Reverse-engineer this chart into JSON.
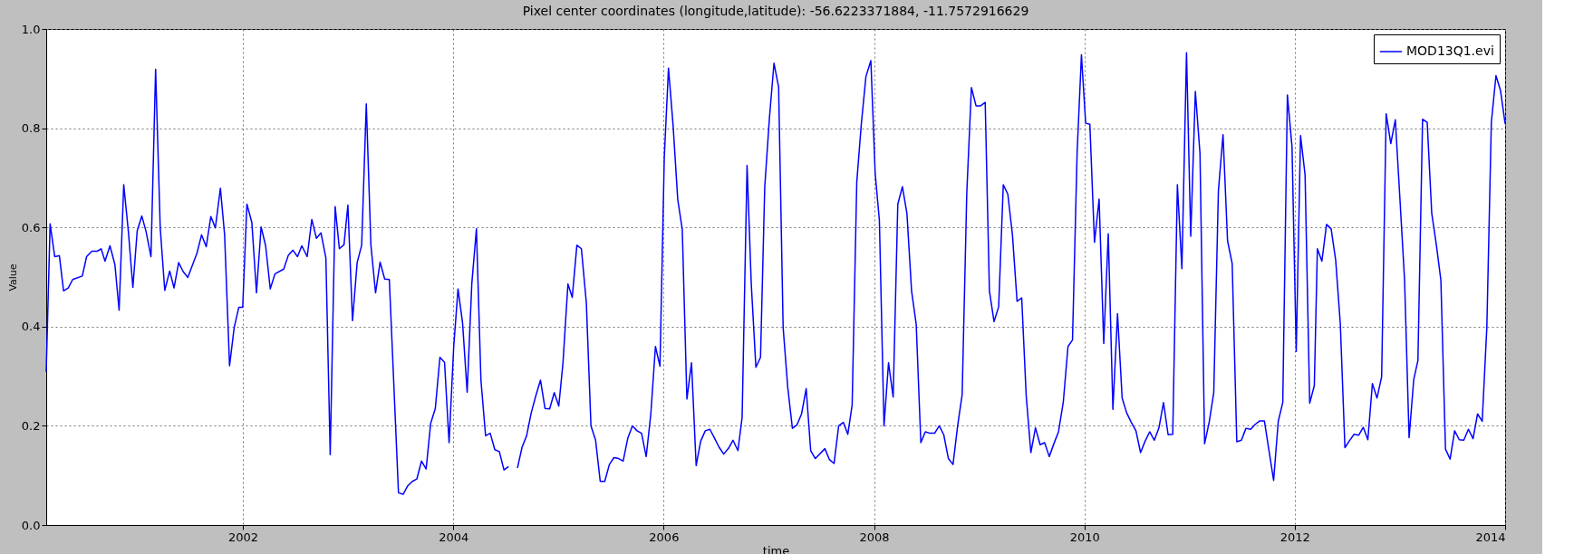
{
  "chart_data": {
    "type": "line",
    "title": "Pixel center coordinates (longitude,latitude): -56.6223371884, -11.7572916629",
    "xlabel": "time",
    "ylabel": "Value",
    "xlim": [
      2000.13,
      2014.0
    ],
    "xticks": [
      2002,
      2004,
      2006,
      2008,
      2010,
      2012,
      2014
    ],
    "ylim": [
      0.0,
      1.0
    ],
    "yticks": [
      {
        "value": 0,
        "label": "0.0"
      },
      0.2,
      0.4,
      0.6,
      0.8,
      {
        "value": 1,
        "label": "1.0"
      }
    ],
    "grid": true,
    "legend": "top right",
    "line_style": "solid",
    "marker": "none",
    "x": [
      2000.13,
      2000.167,
      2000.211,
      2000.255,
      2000.295,
      2000.339,
      2000.382,
      2000.473,
      2000.514,
      2000.564,
      2000.615,
      2000.652,
      2000.689,
      2000.736,
      2000.783,
      2000.823,
      2000.867,
      2000.911,
      2000.954,
      2000.995,
      2001.039,
      2001.079,
      2001.126,
      2001.17,
      2001.214,
      2001.257,
      2001.304,
      2001.345,
      2001.389,
      2001.432,
      2001.476,
      2001.563,
      2001.607,
      2001.651,
      2001.695,
      2001.738,
      2001.786,
      2001.826,
      2001.873,
      2001.917,
      2001.961,
      2001.998,
      2002.038,
      2002.085,
      2002.129,
      2002.173,
      2002.216,
      2002.26,
      2002.304,
      2002.388,
      2002.432,
      2002.475,
      2002.519,
      2002.56,
      2002.611,
      2002.655,
      2002.699,
      2002.742,
      2002.789,
      2002.83,
      2002.877,
      2002.917,
      2002.961,
      2002.998,
      2003.042,
      2003.086,
      2003.129,
      2003.173,
      2003.217,
      2003.261,
      2003.304,
      2003.348,
      2003.392,
      2003.479,
      2003.523,
      2003.567,
      2003.611,
      2003.654,
      2003.698,
      2003.742,
      2003.785,
      2003.829,
      2003.873,
      2003.917,
      2003.96,
      2004.004,
      2004.045,
      2004.088,
      2004.132,
      2004.176,
      2004.22,
      2004.263,
      2004.307,
      2004.351,
      2004.395,
      2004.438,
      2004.482,
      2004.526,
      2004.569,
      2004.61,
      2004.654,
      2004.697,
      2004.741,
      2004.785,
      2004.829,
      2004.872,
      2004.916,
      2004.96,
      2005.003,
      2005.043,
      2005.09,
      2005.131,
      2005.175,
      2005.218,
      2005.265,
      2005.309,
      2005.353,
      2005.397,
      2005.44,
      2005.484,
      2005.528,
      2005.572,
      2005.615,
      2005.659,
      2005.703,
      2005.747,
      2005.79,
      2005.834,
      2005.878,
      2005.922,
      2005.965,
      2006.006,
      2006.046,
      2006.09,
      2006.134,
      2006.177,
      2006.221,
      2006.265,
      2006.309,
      2006.352,
      2006.396,
      2006.44,
      2006.484,
      2006.527,
      2006.571,
      2006.618,
      2006.659,
      2006.706,
      2006.746,
      2006.793,
      2006.833,
      2006.877,
      2006.921,
      2006.961,
      2007.005,
      2007.049,
      2007.093,
      2007.136,
      2007.18,
      2007.224,
      2007.268,
      2007.311,
      2007.355,
      2007.398,
      2007.442,
      2007.533,
      2007.576,
      2007.62,
      2007.664,
      2007.708,
      2007.751,
      2007.792,
      2007.836,
      2007.879,
      2007.923,
      2007.97,
      2008.011,
      2008.051,
      2008.095,
      2008.138,
      2008.182,
      2008.226,
      2008.27,
      2008.313,
      2008.357,
      2008.401,
      2008.445,
      2008.488,
      2008.532,
      2008.576,
      2008.62,
      2008.663,
      2008.707,
      2008.751,
      2008.795,
      2008.838,
      2008.882,
      2008.926,
      2008.97,
      2009.013,
      2009.057,
      2009.097,
      2009.141,
      2009.185,
      2009.229,
      2009.272,
      2009.316,
      2009.36,
      2009.404,
      2009.447,
      2009.491,
      2009.535,
      2009.579,
      2009.622,
      2009.666,
      2009.71,
      2009.754,
      2009.8,
      2009.844,
      2009.887,
      2009.931,
      2009.972,
      2010.012,
      2010.052,
      2010.096,
      2010.14,
      2010.184,
      2010.227,
      2010.271,
      2010.315,
      2010.359,
      2010.402,
      2010.446,
      2010.49,
      2010.534,
      2010.577,
      2010.621,
      2010.665,
      2010.709,
      2010.752,
      2010.796,
      2010.84,
      2010.884,
      2010.927,
      2010.971,
      2011.011,
      2011.055,
      2011.099,
      2011.143,
      2011.186,
      2011.23,
      2011.274,
      2011.318,
      2011.361,
      2011.405,
      2011.449,
      2011.493,
      2011.536,
      2011.58,
      2011.624,
      2011.668,
      2011.711,
      2011.799,
      2011.843,
      2011.886,
      2011.93,
      2011.974,
      2012.014,
      2012.055,
      2012.098,
      2012.142,
      2012.186,
      2012.215,
      2012.258,
      2012.302,
      2012.346,
      2012.389,
      2012.433,
      2012.477,
      2012.52,
      2012.564,
      2012.607,
      2012.651,
      2012.695,
      2012.738,
      2012.782,
      2012.826,
      2012.869,
      2012.913,
      2012.956,
      2013.0,
      2013.044,
      2013.087,
      2013.131,
      2013.171,
      2013.215,
      2013.259,
      2013.302,
      2013.346,
      2013.389,
      2013.433,
      2013.477,
      2013.52,
      2013.564,
      2013.607,
      2013.651,
      2013.695,
      2013.738,
      2013.782,
      2013.826,
      2013.869,
      2013.913,
      2013.956,
      2014.0
    ],
    "series": [
      {
        "name": "MOD13Q1.evi",
        "color": "#0000ff",
        "values": [
          0.309,
          0.607,
          0.541,
          0.543,
          0.472,
          0.478,
          0.495,
          0.502,
          0.541,
          0.552,
          0.552,
          0.557,
          0.532,
          0.563,
          0.525,
          0.433,
          0.686,
          0.592,
          0.479,
          0.593,
          0.623,
          0.592,
          0.541,
          0.919,
          0.599,
          0.473,
          0.512,
          0.478,
          0.529,
          0.511,
          0.499,
          0.548,
          0.585,
          0.561,
          0.622,
          0.599,
          0.679,
          0.585,
          0.321,
          0.398,
          0.439,
          0.439,
          0.647,
          0.61,
          0.468,
          0.601,
          0.563,
          0.476,
          0.506,
          0.516,
          0.544,
          0.554,
          0.541,
          0.563,
          0.541,
          0.616,
          0.578,
          0.589,
          0.538,
          0.142,
          0.642,
          0.557,
          0.565,
          0.645,
          0.412,
          0.529,
          0.564,
          0.849,
          0.564,
          0.468,
          0.53,
          0.496,
          0.495,
          0.065,
          0.062,
          0.079,
          0.088,
          0.093,
          0.129,
          0.113,
          0.205,
          0.235,
          0.338,
          0.328,
          0.166,
          0.359,
          0.476,
          0.408,
          0.268,
          0.486,
          0.597,
          0.292,
          0.18,
          0.185,
          0.152,
          0.148,
          0.111,
          0.118,
          null,
          0.115,
          0.157,
          0.18,
          0.226,
          0.261,
          0.292,
          0.235,
          0.234,
          0.267,
          0.24,
          0.327,
          0.486,
          0.459,
          0.564,
          0.557,
          0.448,
          0.2,
          0.171,
          0.088,
          0.088,
          0.122,
          0.136,
          0.134,
          0.129,
          0.175,
          0.2,
          0.19,
          0.185,
          0.138,
          0.224,
          0.36,
          0.32,
          0.741,
          0.921,
          0.805,
          0.656,
          0.596,
          0.254,
          0.327,
          0.12,
          0.169,
          0.19,
          0.193,
          0.175,
          0.157,
          0.143,
          0.155,
          0.171,
          0.15,
          0.217,
          0.725,
          0.486,
          0.318,
          0.338,
          0.681,
          0.819,
          0.931,
          0.883,
          0.398,
          0.277,
          0.195,
          0.202,
          0.224,
          0.275,
          0.15,
          0.134,
          0.154,
          0.132,
          0.124,
          0.2,
          0.207,
          0.183,
          0.242,
          0.691,
          0.808,
          0.904,
          0.936,
          0.709,
          0.614,
          0.2,
          0.327,
          0.258,
          0.647,
          0.682,
          0.628,
          0.472,
          0.405,
          0.166,
          0.188,
          0.185,
          0.185,
          0.2,
          0.182,
          0.134,
          0.122,
          0.2,
          0.263,
          0.67,
          0.882,
          0.845,
          0.845,
          0.852,
          0.472,
          0.41,
          0.44,
          0.686,
          0.667,
          0.585,
          0.451,
          0.458,
          0.26,
          0.146,
          0.196,
          0.162,
          0.166,
          0.138,
          0.164,
          0.188,
          0.249,
          0.36,
          0.373,
          0.752,
          0.948,
          0.81,
          0.808,
          0.57,
          0.657,
          0.366,
          0.587,
          0.233,
          0.426,
          0.256,
          0.226,
          0.207,
          0.19,
          0.146,
          0.169,
          0.188,
          0.171,
          0.196,
          0.247,
          0.182,
          0.183,
          0.686,
          0.517,
          0.952,
          0.582,
          0.874,
          0.749,
          0.164,
          0.207,
          0.267,
          0.674,
          0.787,
          0.573,
          0.527,
          0.168,
          0.171,
          0.195,
          0.193,
          0.203,
          0.21,
          0.21,
          0.09,
          0.209,
          0.247,
          0.867,
          0.762,
          0.35,
          0.785,
          0.706,
          0.246,
          0.281,
          0.557,
          0.532,
          0.606,
          0.597,
          0.534,
          0.406,
          0.156,
          0.17,
          0.183,
          0.181,
          0.197,
          0.172,
          0.285,
          0.256,
          0.299,
          0.829,
          0.769,
          0.817,
          0.657,
          0.494,
          0.176,
          0.293,
          0.332,
          0.818,
          0.812,
          0.629,
          0.565,
          0.494,
          0.153,
          0.133,
          0.19,
          0.172,
          0.171,
          0.193,
          0.174,
          0.224,
          0.209,
          0.398,
          0.812,
          0.906,
          0.876,
          0.809
        ]
      }
    ]
  }
}
